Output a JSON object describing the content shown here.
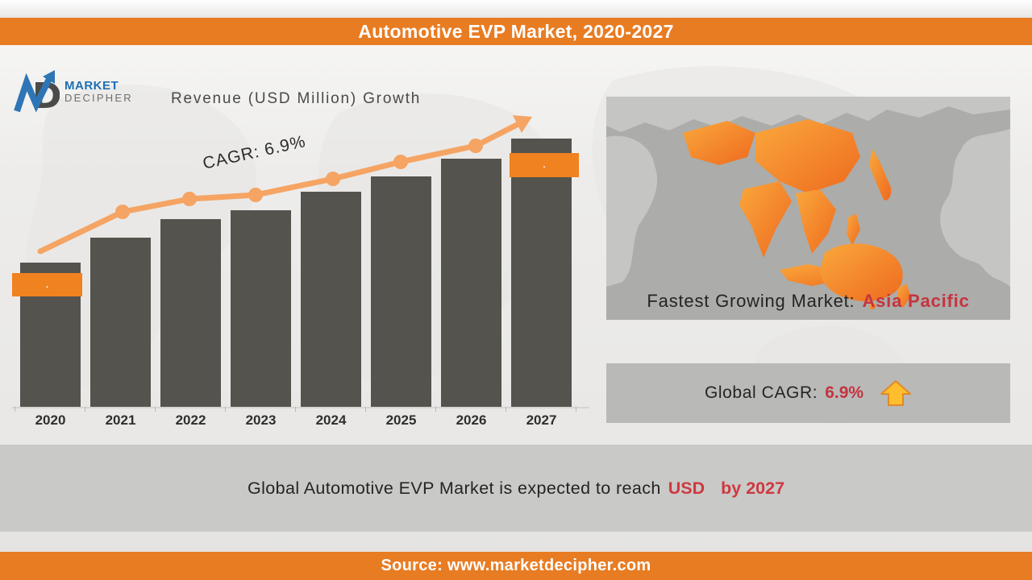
{
  "page": {
    "title_banner": "Automotive EVP Market, 2020-2027",
    "source": "Source: www.marketdecipher.com"
  },
  "logo": {
    "letter_d": "D",
    "line1": "MARKET",
    "line2": "DECIPHER"
  },
  "chart": {
    "heading": "Revenue (USD Million) Growth",
    "cagr_annotation": "CAGR: 6.9%",
    "badge_2020": ".",
    "badge_2027": "."
  },
  "chart_data": {
    "type": "bar",
    "title": "Revenue (USD Million) Growth",
    "categories": [
      "2020",
      "2021",
      "2022",
      "2023",
      "2024",
      "2025",
      "2026",
      "2027"
    ],
    "series": [
      {
        "name": "Revenue (USD Million)",
        "type": "bar",
        "values": [
          null,
          null,
          null,
          null,
          null,
          null,
          null,
          null
        ],
        "relative_heights": [
          0.537,
          0.631,
          0.7,
          0.733,
          0.802,
          0.859,
          0.925,
          1.0
        ],
        "data_labels": [
          ".",
          null,
          null,
          null,
          null,
          null,
          null,
          "."
        ],
        "note": "numeric values are redacted in the image; orange label boxes on 2020 and 2027 show only a dot"
      },
      {
        "name": "Growth trend",
        "type": "line",
        "annotation": "CAGR: 6.9%",
        "direction": "increasing"
      }
    ],
    "xlabel": "",
    "ylabel": "Revenue (USD Million)",
    "legend": false,
    "grid": false
  },
  "right_panel": {
    "fastest_growing_prefix": "Fastest Growing Market:",
    "fastest_growing_value": "Asia Pacific",
    "global_cagr_prefix": "Global CAGR:",
    "global_cagr_value": "6.9%"
  },
  "footer": {
    "message_prefix": "Global Automotive EVP Market is expected to reach",
    "message_currency": "USD",
    "message_suffix": "by 2027"
  },
  "colors": {
    "banner_orange": "#E87C23",
    "badge_orange": "#F0821F",
    "trend_orange": "#F5A463",
    "bar_gray": "#55534D",
    "accent_red": "#C5343F",
    "cagr_card_gray": "#B9B9B7",
    "footer_band_gray": "#C9C9C7",
    "map_card_gray": "#ACACAA"
  }
}
